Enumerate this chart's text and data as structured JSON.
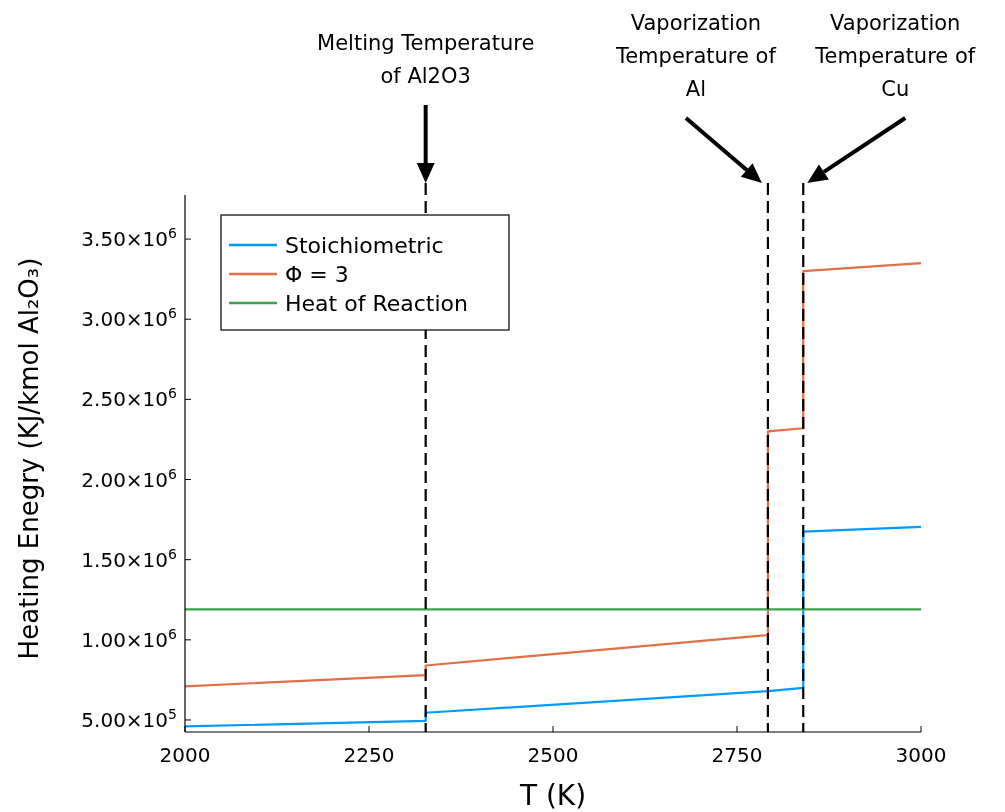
{
  "chart_data": {
    "type": "line",
    "xlabel": "T (K)",
    "ylabel": "Heating Enegry (KJ/kmol Al₂O₃)",
    "xlim": [
      2000,
      3000
    ],
    "xticks": [
      2000,
      2250,
      2500,
      2750,
      3000
    ],
    "ylim": [
      425000,
      3775000
    ],
    "yticks": [
      {
        "value": 500000,
        "label": "5.00×10$^{5}$"
      },
      {
        "value": 1000000,
        "label": "1.00×10$^{6}$"
      },
      {
        "value": 1500000,
        "label": "1.50×10$^{6}$"
      },
      {
        "value": 2000000,
        "label": "2.00×10$^{6}$"
      },
      {
        "value": 2500000,
        "label": "2.50×10$^{6}$"
      },
      {
        "value": 3000000,
        "label": "3.00×10$^{6}$"
      },
      {
        "value": 3500000,
        "label": "3.50×10$^{6}$"
      }
    ],
    "grid": false,
    "legend": "top left",
    "series": [
      {
        "name": "Stoichiometric",
        "color": "#009af9",
        "x": [
          2000,
          2327,
          2327,
          2792,
          2840,
          2840,
          3000
        ],
        "values": [
          460000,
          495000,
          545000,
          680000,
          700000,
          1675000,
          1705000
        ]
      },
      {
        "name": "Φ = 3",
        "color": "#e26f46",
        "x": [
          2000,
          2327,
          2327,
          2792,
          2792,
          2840,
          2840,
          3000
        ],
        "values": [
          710000,
          780000,
          840000,
          1030000,
          2300000,
          2320000,
          3300000,
          3350000
        ]
      },
      {
        "name": "Heat of Reaction",
        "color": "#3da44d",
        "x": [
          2000,
          3000
        ],
        "values": [
          1190000,
          1190000
        ]
      }
    ],
    "ref_lines": [
      {
        "axis": "x",
        "value": 2327,
        "color": "#000000",
        "line_style": "dashed"
      },
      {
        "axis": "x",
        "value": 2792,
        "color": "#000000",
        "line_style": "dashed"
      },
      {
        "axis": "x",
        "value": 2840,
        "color": "#000000",
        "line_style": "dashed"
      }
    ],
    "annotations": [
      "Melting Temperature of Al2O3",
      "Vaporization Temperature of Al",
      "Vaporization Temperature of Cu"
    ]
  }
}
